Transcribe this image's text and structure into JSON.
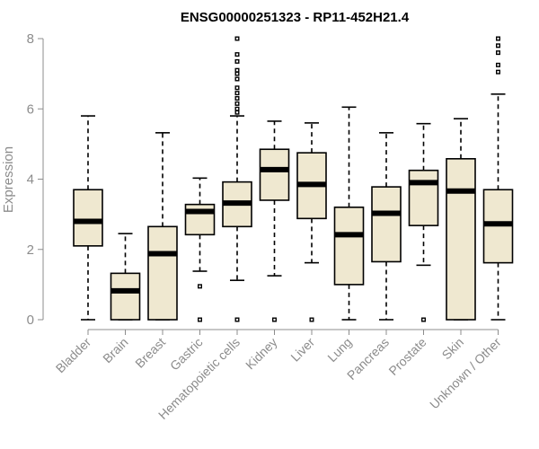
{
  "chart_data": {
    "type": "boxplot",
    "title": "ENSG00000251323 - RP11-452H21.4",
    "xlabel": "",
    "ylabel": "Expression",
    "ylim": [
      0,
      8
    ],
    "yticks": [
      0,
      2,
      4,
      6,
      8
    ],
    "box_color": "#efe8d0",
    "categories": [
      "Bladder",
      "Brain",
      "Breast",
      "Gastric",
      "Hematopoietic cells",
      "Kidney",
      "Liver",
      "Lung",
      "Pancreas",
      "Prostate",
      "Skin",
      "Unknown / Other"
    ],
    "boxes": [
      {
        "min": 0.0,
        "q1": 2.1,
        "median": 2.8,
        "q3": 3.7,
        "max": 5.8,
        "outliers": []
      },
      {
        "min": 0.0,
        "q1": 0.0,
        "median": 0.82,
        "q3": 1.32,
        "max": 2.45,
        "outliers": []
      },
      {
        "min": 0.0,
        "q1": 0.0,
        "median": 1.88,
        "q3": 2.65,
        "max": 5.32,
        "outliers": []
      },
      {
        "min": 1.38,
        "q1": 2.42,
        "median": 3.08,
        "q3": 3.28,
        "max": 4.03,
        "outliers": [
          0.95,
          0.0
        ]
      },
      {
        "min": 1.12,
        "q1": 2.65,
        "median": 3.32,
        "q3": 3.92,
        "max": 5.8,
        "outliers": [
          8.0,
          7.55,
          7.35,
          7.1,
          7.0,
          6.85,
          6.6,
          6.45,
          6.3,
          6.15,
          6.0,
          5.9,
          0.0
        ]
      },
      {
        "min": 1.25,
        "q1": 3.4,
        "median": 4.27,
        "q3": 4.85,
        "max": 5.65,
        "outliers": [
          0.0
        ]
      },
      {
        "min": 1.62,
        "q1": 2.88,
        "median": 3.85,
        "q3": 4.75,
        "max": 5.6,
        "outliers": [
          0.0
        ]
      },
      {
        "min": 0.0,
        "q1": 1.0,
        "median": 2.42,
        "q3": 3.2,
        "max": 6.05,
        "outliers": []
      },
      {
        "min": 0.0,
        "q1": 1.65,
        "median": 3.03,
        "q3": 3.78,
        "max": 5.32,
        "outliers": []
      },
      {
        "min": 1.55,
        "q1": 2.68,
        "median": 3.9,
        "q3": 4.25,
        "max": 5.58,
        "outliers": [
          0.0
        ]
      },
      {
        "min": 0.0,
        "q1": 0.0,
        "median": 3.66,
        "q3": 4.58,
        "max": 5.72,
        "outliers": []
      },
      {
        "min": 0.0,
        "q1": 1.62,
        "median": 2.73,
        "q3": 3.7,
        "max": 6.42,
        "outliers": [
          8.0,
          7.8,
          7.6,
          7.25,
          7.05
        ]
      }
    ]
  }
}
